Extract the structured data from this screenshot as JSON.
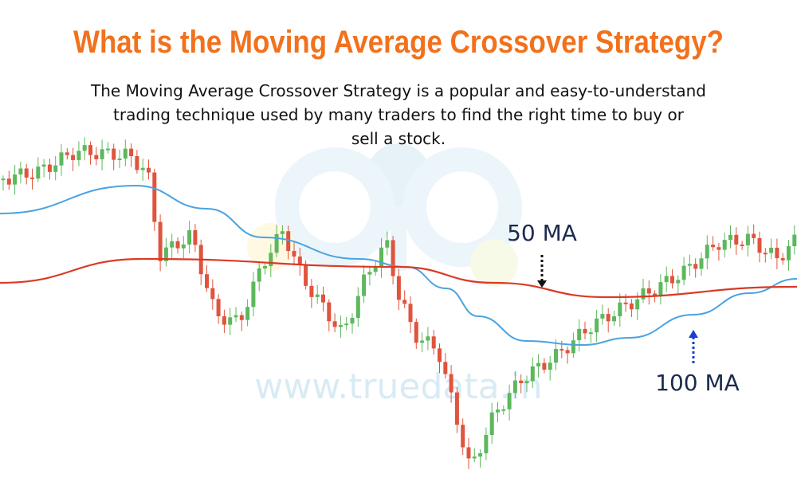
{
  "title": "What is the Moving Average Crossover Strategy?",
  "description": [
    "The Moving Average Crossover Strategy is a popular and easy-to-understand",
    "trading technique used by many traders to find the right time to buy or",
    "sell a stock."
  ],
  "labels": {
    "ma50": "50 MA",
    "ma100": "100 MA"
  },
  "watermark": "www.truedata.in"
}
